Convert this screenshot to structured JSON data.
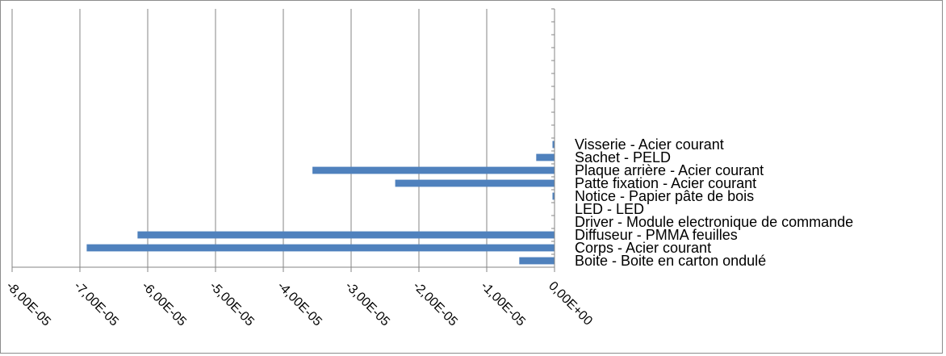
{
  "chart_data": {
    "type": "bar",
    "orientation": "horizontal",
    "title": "",
    "xlabel": "",
    "ylabel": "",
    "categories": [
      "Boite - Boite en carton ondulé",
      "Corps - Acier courant",
      "Diffuseur - PMMA feuilles",
      "Driver - Module electronique de commande",
      "LED - LED",
      "Notice - Papier pâte de bois",
      "Patte fixation - Acier courant",
      "Plaque arrière - Acier courant",
      "Sachet - PELD",
      "Visserie - Acier courant"
    ],
    "values": [
      -5.2e-06,
      -6.9e-05,
      -6.15e-05,
      0,
      0,
      -3e-07,
      -2.35e-05,
      -3.57e-05,
      -2.7e-06,
      -3e-07
    ],
    "xlim": [
      -8e-05,
      0
    ],
    "x_ticks": [
      -8e-05,
      -7e-05,
      -6e-05,
      -5e-05,
      -4e-05,
      -3e-05,
      -2e-05,
      -1e-05,
      0
    ],
    "x_tick_labels": [
      "-8,00E-05",
      "-7,00E-05",
      "-6,00E-05",
      "-5,00E-05",
      "-4,00E-05",
      "-3,00E-05",
      "-2,00E-05",
      "-1,00E-05",
      "0,00E+00"
    ],
    "y_slots": 20,
    "grid": "vertical",
    "legend": "none",
    "bar_color": "#4f81bd",
    "grid_color": "#868686"
  }
}
